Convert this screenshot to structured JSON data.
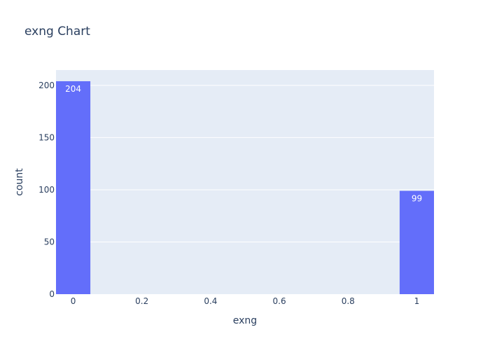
{
  "chart_data": {
    "type": "bar",
    "title": "exng Chart",
    "xlabel": "exng",
    "ylabel": "count",
    "bars": [
      {
        "x": 0,
        "value": 204,
        "label": "204"
      },
      {
        "x": 1,
        "value": 99,
        "label": "99"
      }
    ],
    "bin_width": 0.1,
    "x_ticks": [
      {
        "value": 0,
        "label": "0"
      },
      {
        "value": 0.2,
        "label": "0.2"
      },
      {
        "value": 0.4,
        "label": "0.4"
      },
      {
        "value": 0.6,
        "label": "0.6"
      },
      {
        "value": 0.8,
        "label": "0.8"
      },
      {
        "value": 1,
        "label": "1"
      }
    ],
    "y_ticks": [
      {
        "value": 0,
        "label": "0"
      },
      {
        "value": 50,
        "label": "50"
      },
      {
        "value": 100,
        "label": "100"
      },
      {
        "value": 150,
        "label": "150"
      },
      {
        "value": 200,
        "label": "200"
      }
    ],
    "xlim": [
      -0.05,
      1.05
    ],
    "ylim": [
      0,
      214.7
    ],
    "grid": true,
    "colors": {
      "bar": "#636efa",
      "plot_bg": "#e5ecf6",
      "grid": "#ffffff",
      "text": "#2a3f5f",
      "bar_label": "#ffffff"
    }
  }
}
